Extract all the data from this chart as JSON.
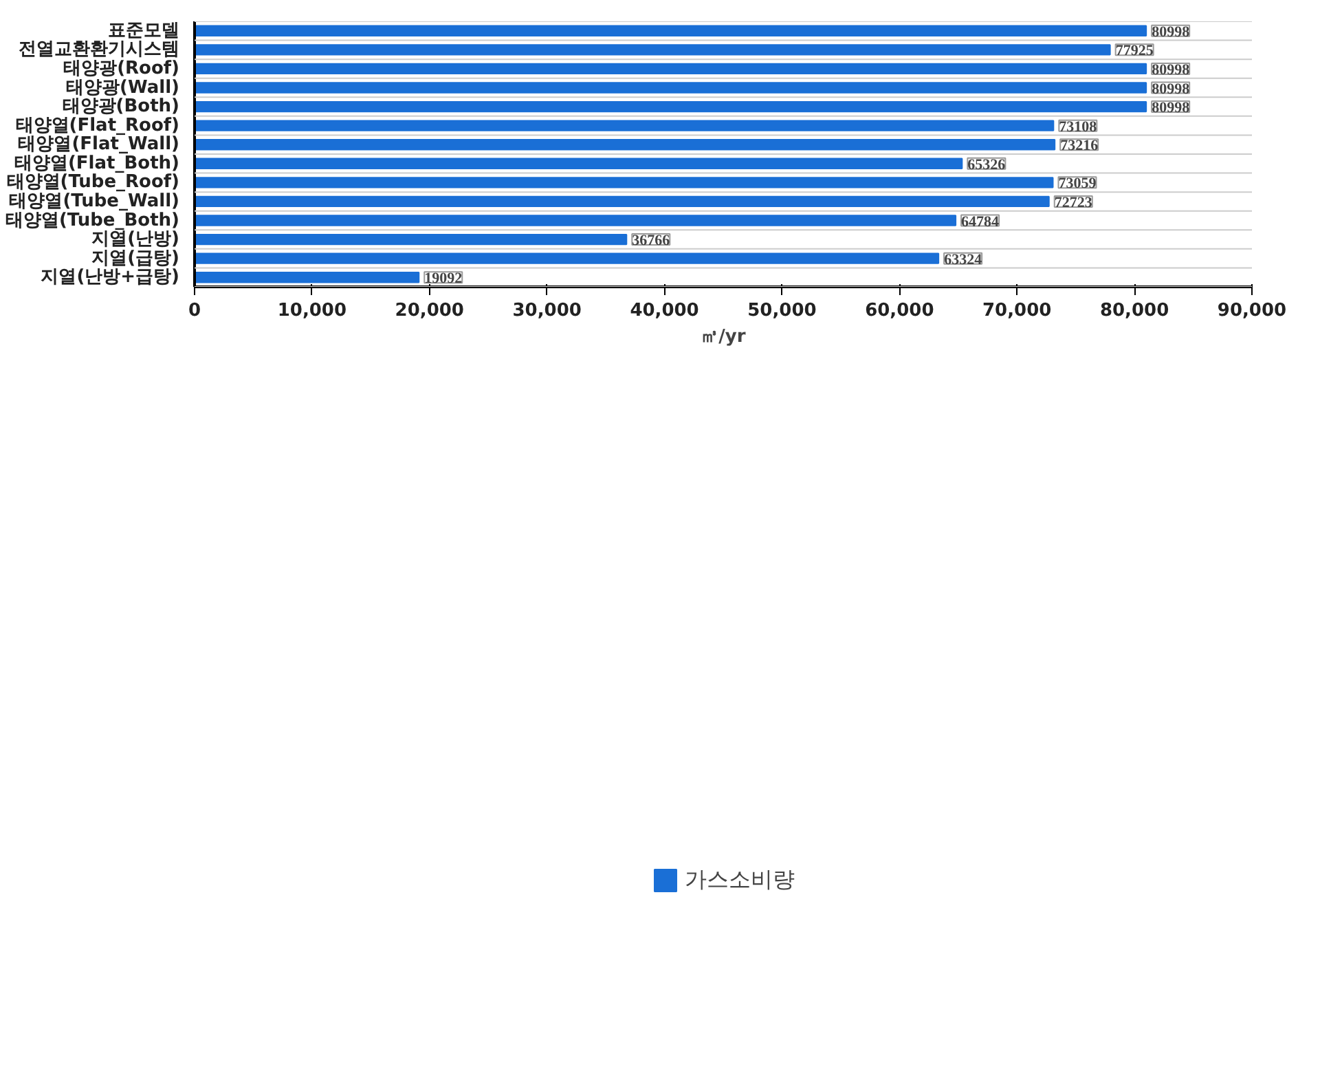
{
  "chart_data": {
    "type": "bar",
    "orientation": "horizontal",
    "categories": [
      "표준모델",
      "전열교환환기시스템",
      "태양광(Roof)",
      "태양광(Wall)",
      "태양광(Both)",
      "태양열(Flat_Roof)",
      "태양열(Flat_Wall)",
      "태양열(Flat_Both)",
      "태양열(Tube_Roof)",
      "태양열(Tube_Wall)",
      "태양열(Tube_Both)",
      "지열(난방)",
      "지열(급탕)",
      "지열(난방+급탕)"
    ],
    "series": [
      {
        "name": "가스소비량",
        "color": "#1a6fd6",
        "values": [
          80998,
          77925,
          80998,
          80998,
          80998,
          73108,
          73216,
          65326,
          73059,
          72723,
          64784,
          36766,
          63324,
          19092
        ]
      }
    ],
    "xlim": [
      0,
      90000
    ],
    "xticks": [
      {
        "value": 0,
        "label": "0"
      },
      {
        "value": 10000,
        "label": "10,000"
      },
      {
        "value": 20000,
        "label": "20,000"
      },
      {
        "value": 30000,
        "label": "30,000"
      },
      {
        "value": 40000,
        "label": "40,000"
      },
      {
        "value": 50000,
        "label": "50,000"
      },
      {
        "value": 60000,
        "label": "60,000"
      },
      {
        "value": 70000,
        "label": "70,000"
      },
      {
        "value": 80000,
        "label": "80,000"
      },
      {
        "value": 90000,
        "label": "90,000"
      }
    ],
    "xlabel": "㎥/yr",
    "data_labels": true,
    "grid": "y",
    "legend": "bottom"
  }
}
